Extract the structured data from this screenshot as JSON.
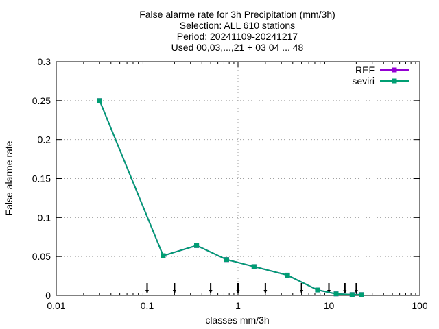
{
  "chart_data": {
    "type": "line",
    "title_lines": [
      "False alarme rate  for 3h Precipitation (mm/3h)",
      "Selection: ALL    610 stations",
      "Period: 20241109-20241217",
      "Used 00,03,...,21 + 03 04  ... 48"
    ],
    "xlabel": "classes mm/3h",
    "ylabel": "False alarme rate",
    "x_scale": "log",
    "xlim": [
      0.01,
      100
    ],
    "ylim": [
      0,
      0.3
    ],
    "x_ticks": [
      0.01,
      0.1,
      1,
      10,
      100
    ],
    "x_tick_labels": [
      "0.01",
      "0.1",
      "1",
      "10",
      "100"
    ],
    "y_ticks": [
      0,
      0.05,
      0.1,
      0.15,
      0.2,
      0.25,
      0.3
    ],
    "y_tick_labels": [
      "0",
      "0.05",
      "0.1",
      "0.15",
      "0.2",
      "0.25",
      "0.3"
    ],
    "grid": true,
    "legend_position": "top-right",
    "series": [
      {
        "name": "REF",
        "color": "#9400d3",
        "x": [
          0.03,
          0.15,
          0.35,
          0.75,
          1.5,
          3.5,
          7.5,
          12,
          18,
          23
        ],
        "y": [
          0.25,
          0.051,
          0.064,
          0.046,
          0.037,
          0.026,
          0.007,
          0.002,
          0.001,
          0.001
        ]
      },
      {
        "name": "seviri",
        "color": "#009e73",
        "x": [
          0.03,
          0.15,
          0.35,
          0.75,
          1.5,
          3.5,
          7.5,
          12,
          18,
          23
        ],
        "y": [
          0.25,
          0.051,
          0.064,
          0.046,
          0.037,
          0.026,
          0.007,
          0.002,
          0.001,
          0.001
        ]
      }
    ],
    "threshold_markers_x": [
      0.1,
      0.2,
      0.5,
      1,
      2,
      5,
      10,
      15,
      20
    ]
  }
}
